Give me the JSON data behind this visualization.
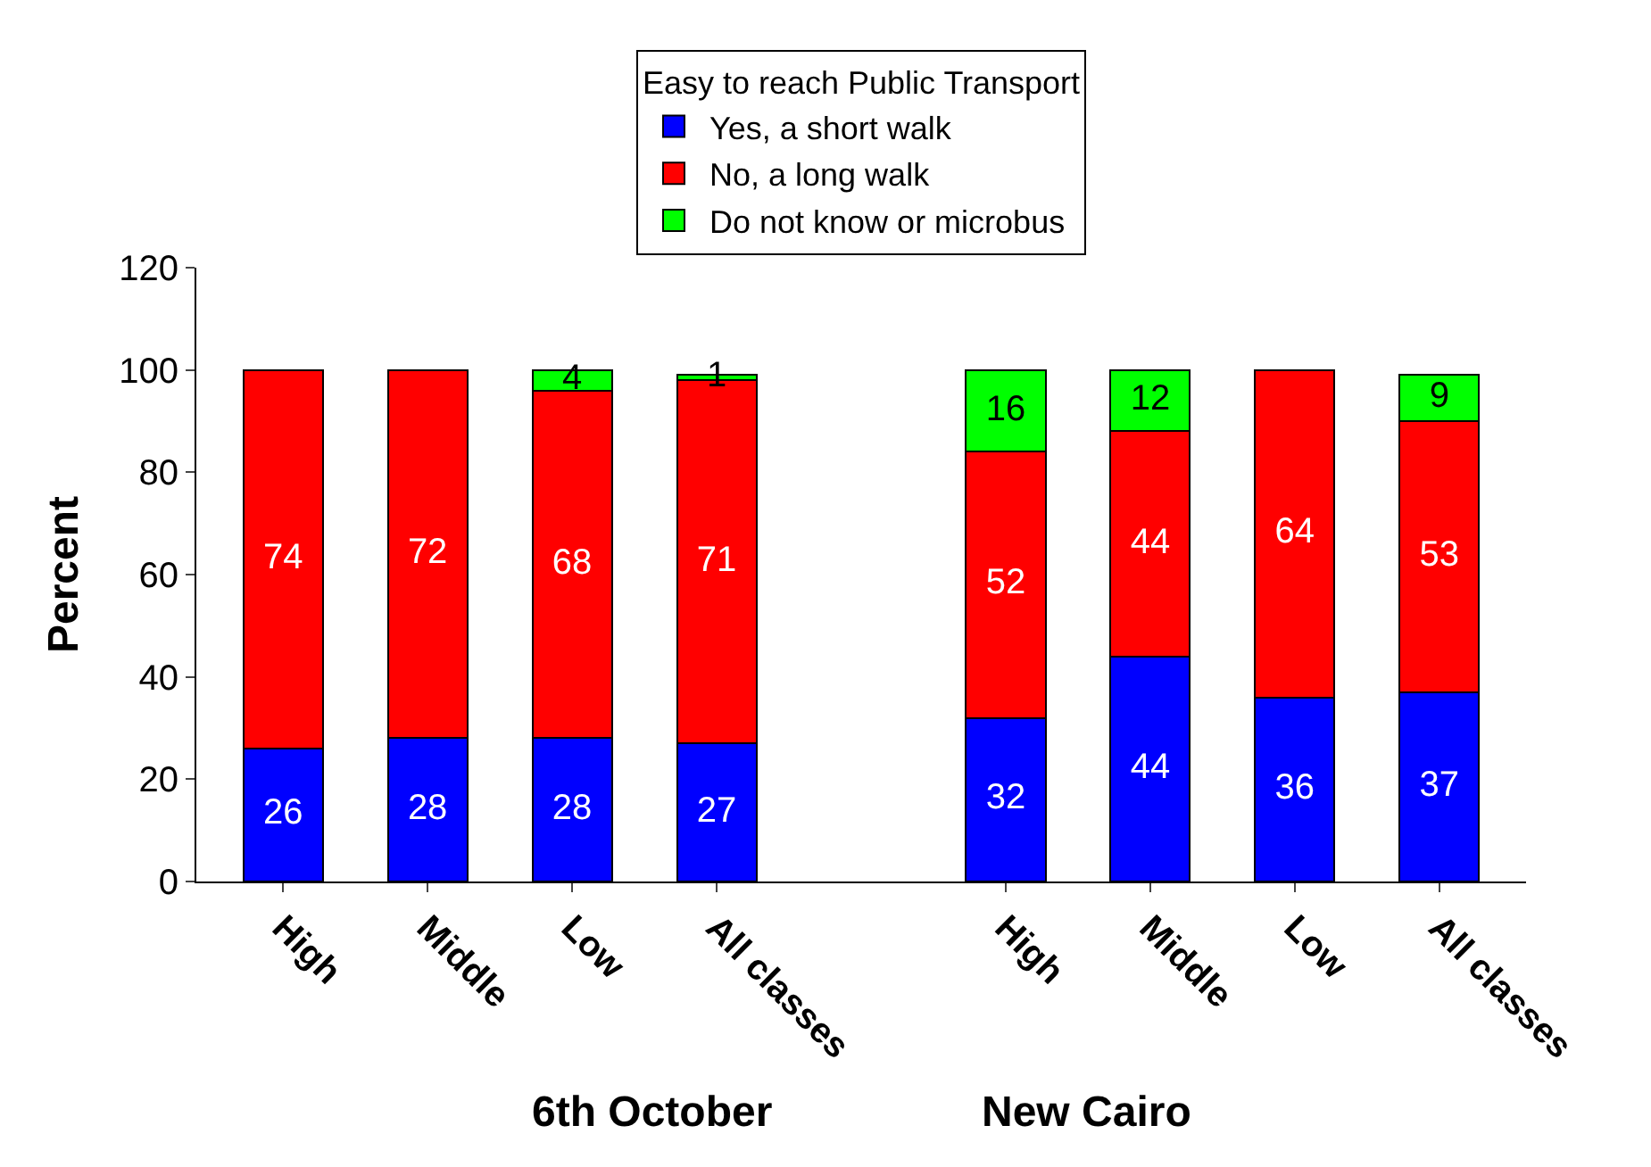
{
  "chart_data": {
    "type": "bar",
    "stacked": true,
    "ylabel": "Percent",
    "legend_title": "Easy to reach Public Transport",
    "legend": "top",
    "categories": [
      "High",
      "Middle",
      "Low",
      "All classes",
      null,
      "High",
      "Middle",
      "Low",
      "All classes"
    ],
    "series": [
      {
        "name": "Yes, a short walk",
        "color": "#0000ff",
        "values": [
          26,
          28,
          28,
          27,
          null,
          32,
          44,
          36,
          37
        ]
      },
      {
        "name": "No, a long walk",
        "color": "#ff0000",
        "values": [
          74,
          72,
          68,
          71,
          null,
          52,
          44,
          64,
          53
        ]
      },
      {
        "name": "Do not know or microbus",
        "color": "#00ff00",
        "values": [
          null,
          null,
          4,
          1,
          null,
          16,
          12,
          null,
          9
        ]
      }
    ],
    "ylim": [
      0,
      120
    ],
    "yticks": [
      0,
      20,
      40,
      60,
      80,
      100,
      120
    ],
    "data_labels": true,
    "annotations": [
      "6th October",
      "New Cairo"
    ]
  }
}
